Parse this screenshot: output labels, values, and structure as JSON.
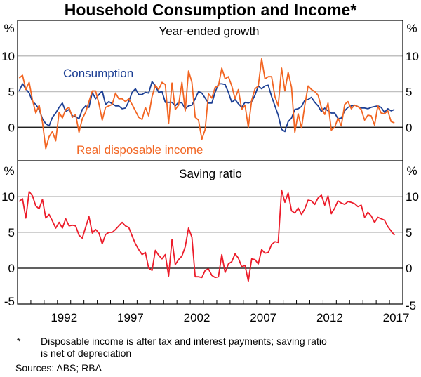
{
  "chart_data": [
    {
      "type": "line",
      "title": "Household Consumption and Income*",
      "panel_title": "Year-ended growth",
      "unit_label": "%",
      "ylim": [
        -4.7,
        15
      ],
      "yticks": [
        0,
        5,
        10
      ],
      "xlim": [
        1989,
        2018
      ],
      "grid": true,
      "x_start": 1989.125,
      "x_step": 0.25,
      "series": [
        {
          "name": "Consumption",
          "color": "#1c3f94",
          "values": [
            5.1,
            6.1,
            5.4,
            4.8,
            3.6,
            3.2,
            2.5,
            1.2,
            0.5,
            0.2,
            1.4,
            2.0,
            2.8,
            3.4,
            2.2,
            2.5,
            1.6,
            1.5,
            1.2,
            2.5,
            3.0,
            2.8,
            4.9,
            4.0,
            4.6,
            5.1,
            3.2,
            3.6,
            3.3,
            3.0,
            3.0,
            2.6,
            2.7,
            3.6,
            4.9,
            5.4,
            4.6,
            4.6,
            4.9,
            4.8,
            6.4,
            5.8,
            4.9,
            5.0,
            3.5,
            3.5,
            3.5,
            3.0,
            3.5,
            3.4,
            2.6,
            3.0,
            3.1,
            4.0,
            5.0,
            4.8,
            4.1,
            3.4,
            3.4,
            4.9,
            6.1,
            6.1,
            6.0,
            4.9,
            3.5,
            3.9,
            3.3,
            2.8,
            3.5,
            3.4,
            3.6,
            4.5,
            5.8,
            5.4,
            5.8,
            5.9,
            4.3,
            3.0,
            1.7,
            -0.3,
            -0.6,
            0.8,
            1.3,
            2.5,
            2.6,
            2.9,
            3.8,
            3.9,
            4.2,
            3.5,
            3.0,
            2.2,
            2.7,
            2.3,
            2.0,
            2.0,
            1.2,
            1.3,
            2.3,
            2.8,
            3.0,
            3.1,
            2.9,
            2.7,
            2.7,
            2.6,
            2.8,
            2.9,
            3.0,
            2.8,
            2.1,
            2.6,
            2.3,
            2.5
          ]
        },
        {
          "name": "Real disposable income",
          "color": "#f26522",
          "values": [
            6.9,
            7.3,
            5.3,
            6.3,
            3.8,
            2.0,
            3.1,
            0.7,
            -3.0,
            -1.3,
            -0.6,
            -1.9,
            2.1,
            1.3,
            2.5,
            2.8,
            1.4,
            1.8,
            -0.7,
            1.2,
            2.1,
            3.6,
            5.1,
            5.1,
            3.3,
            1.0,
            2.8,
            3.0,
            3.2,
            4.8,
            4.0,
            4.0,
            3.6,
            4.0,
            3.2,
            2.3,
            1.4,
            1.1,
            2.8,
            1.6,
            4.3,
            5.9,
            5.3,
            6.3,
            6.0,
            0.5,
            6.2,
            2.5,
            3.1,
            6.3,
            2.3,
            7.9,
            6.3,
            1.4,
            1.0,
            -1.7,
            -0.3,
            4.7,
            4.1,
            5.6,
            5.8,
            8.3,
            6.8,
            7.1,
            5.8,
            4.0,
            5.3,
            2.5,
            3.1,
            0.0,
            3.8,
            5.4,
            5.8,
            9.6,
            6.8,
            7.1,
            7.1,
            4.3,
            3.0,
            8.3,
            5.1,
            7.7,
            5.6,
            -0.7,
            1.9,
            -0.1,
            3.1,
            5.8,
            5.3,
            5.0,
            4.5,
            2.8,
            1.8,
            3.4,
            -0.4,
            0.0,
            1.3,
            0.2,
            3.2,
            3.6,
            2.6,
            3.1,
            2.9,
            2.5,
            1.0,
            1.7,
            1.6,
            0.3,
            3.0,
            2.0,
            1.9,
            2.3,
            0.8,
            0.6
          ]
        }
      ]
    },
    {
      "type": "line",
      "panel_title": "Saving ratio",
      "unit_label": "%",
      "ylim": [
        -5,
        15
      ],
      "yticks": [
        -5,
        0,
        5,
        10
      ],
      "xlim": [
        1989,
        2018
      ],
      "xticklabels": [
        "1992",
        "1997",
        "2002",
        "2007",
        "2012",
        "2017"
      ],
      "grid": true,
      "x_start": 1989.125,
      "x_step": 0.25,
      "series": [
        {
          "name": "Saving ratio",
          "color": "#ec1c2a",
          "values": [
            9.3,
            9.7,
            7.0,
            10.7,
            10.1,
            8.7,
            8.3,
            9.6,
            7.0,
            7.5,
            6.6,
            5.6,
            6.4,
            5.6,
            6.9,
            5.9,
            6.0,
            5.9,
            4.6,
            4.2,
            5.7,
            7.2,
            4.9,
            5.4,
            4.9,
            3.4,
            4.7,
            5.0,
            5.0,
            5.4,
            5.9,
            6.4,
            5.9,
            5.7,
            4.5,
            3.4,
            2.6,
            1.9,
            2.2,
            0.0,
            -0.3,
            2.5,
            1.8,
            1.3,
            1.9,
            -1.1,
            4.0,
            0.5,
            1.2,
            1.7,
            3.0,
            5.6,
            4.3,
            -1.2,
            -1.2,
            -1.3,
            -0.3,
            -0.1,
            -1.0,
            -1.3,
            -1.2,
            1.9,
            -0.6,
            0.6,
            0.9,
            2.0,
            1.4,
            0.2,
            0.4,
            -1.8,
            1.3,
            1.2,
            0.6,
            2.6,
            2.1,
            2.2,
            3.3,
            3.7,
            3.6,
            10.9,
            9.2,
            10.5,
            8.0,
            7.7,
            8.4,
            7.5,
            8.3,
            9.5,
            9.4,
            8.9,
            9.8,
            10.2,
            8.8,
            10.1,
            7.6,
            8.4,
            9.4,
            9.1,
            8.9,
            9.3,
            9.2,
            9.0,
            8.6,
            8.8,
            7.1,
            7.8,
            7.3,
            6.4,
            7.1,
            6.9,
            6.7,
            5.8,
            5.2,
            4.6
          ]
        }
      ]
    }
  ],
  "footnote": {
    "marker": "*",
    "line1": "Disposable income is after tax and interest payments; saving ratio",
    "line2": "is net of depreciation",
    "sources": "Sources: ABS; RBA"
  }
}
